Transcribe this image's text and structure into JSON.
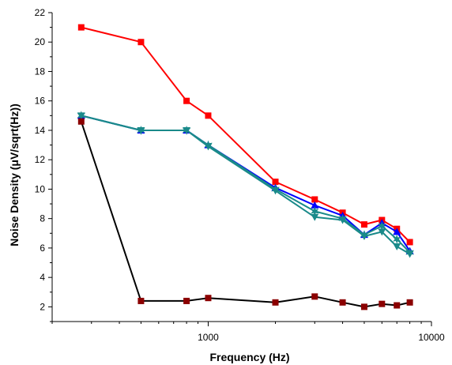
{
  "chart_data": {
    "type": "line",
    "xlabel": "Frequency (Hz)",
    "ylabel": "Noise Density (μV/sqrt(Hz))",
    "x_scale": "log",
    "xlim": [
      200,
      10000
    ],
    "ylim": [
      1,
      22
    ],
    "x_ticks": [
      1000,
      10000
    ],
    "x_tick_labels": [
      "1000",
      "10000"
    ],
    "y_ticks": [
      2,
      4,
      6,
      8,
      10,
      12,
      14,
      16,
      18,
      20,
      22
    ],
    "y_tick_labels": [
      "2",
      "4",
      "6",
      "8",
      "10",
      "12",
      "14",
      "16",
      "18",
      "20",
      "22"
    ],
    "grid": false,
    "series": [
      {
        "color": "#ff0000",
        "marker": "square",
        "x": [
          270,
          500,
          800,
          1000,
          2000,
          3000,
          4000,
          5000,
          6000,
          7000,
          8000
        ],
        "y": [
          21.0,
          20.0,
          16.0,
          15.0,
          10.5,
          9.3,
          8.4,
          7.6,
          7.9,
          7.3,
          6.4
        ]
      },
      {
        "color": "#0000ff",
        "marker": "triangle-up",
        "x": [
          270,
          500,
          800,
          1000,
          2000,
          3000,
          4000,
          5000,
          6000,
          7000,
          8000
        ],
        "y": [
          15.0,
          14.0,
          14.0,
          13.0,
          10.1,
          8.9,
          8.2,
          6.9,
          7.7,
          7.1,
          5.8
        ]
      },
      {
        "color": "#1a8a8a",
        "marker": "triangle-down",
        "x": [
          270,
          500,
          800,
          1000,
          2000,
          3000,
          4000,
          5000,
          6000,
          7000,
          8000
        ],
        "y": [
          15.0,
          14.0,
          14.0,
          12.9,
          9.9,
          8.1,
          7.9,
          6.8,
          7.1,
          6.1,
          5.6
        ]
      },
      {
        "color": "#1a8a8a",
        "marker": "star",
        "x": [
          270,
          500,
          800,
          1000,
          2000,
          3000,
          4000,
          5000,
          6000,
          7000,
          8000
        ],
        "y": [
          15.0,
          14.0,
          14.0,
          13.0,
          10.0,
          8.5,
          8.0,
          6.9,
          7.5,
          6.6,
          5.7
        ]
      },
      {
        "color": "#000000",
        "marker": "square",
        "marker_color": "#8b0000",
        "x": [
          270,
          500,
          800,
          1000,
          2000,
          3000,
          4000,
          5000,
          6000,
          7000,
          8000
        ],
        "y": [
          14.6,
          2.4,
          2.4,
          2.6,
          2.3,
          2.7,
          2.3,
          2.0,
          2.2,
          2.1,
          2.3
        ]
      }
    ]
  }
}
